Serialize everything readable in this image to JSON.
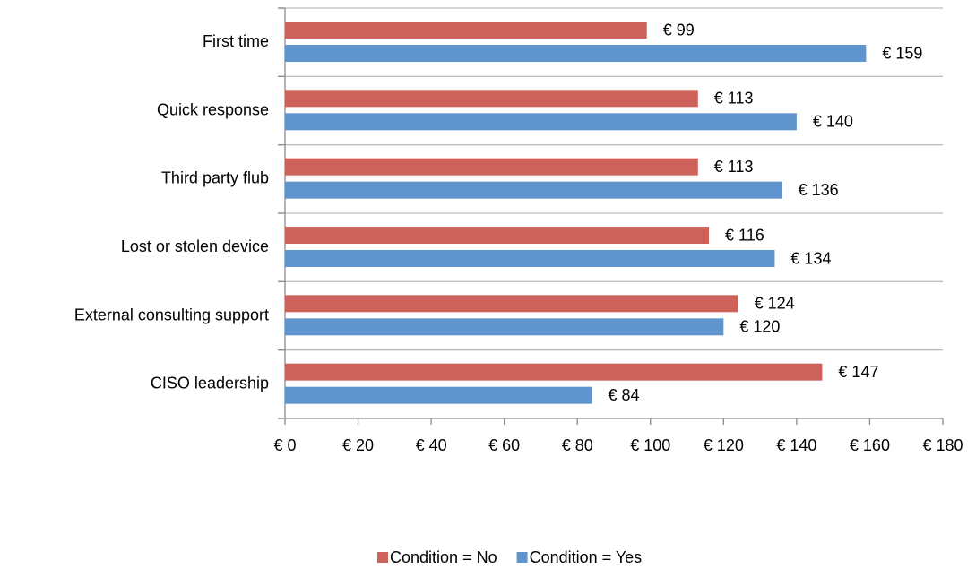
{
  "chart_data": {
    "type": "hbar",
    "categories": [
      "First time",
      "Quick response",
      "Third party flub",
      "Lost or stolen device",
      "External consulting support",
      "CISO leadership"
    ],
    "series": [
      {
        "name": "Condition = No",
        "color": "#cd625b",
        "values": [
          99,
          113,
          113,
          116,
          124,
          147
        ],
        "value_labels": [
          "€ 99",
          "€ 113",
          "€ 113",
          "€ 116",
          "€ 124",
          "€ 147"
        ]
      },
      {
        "name": "Condition = Yes",
        "color": "#5f94cc",
        "values": [
          159,
          140,
          136,
          134,
          120,
          84
        ],
        "value_labels": [
          "€ 159",
          "€ 140",
          "€ 136",
          "€ 134",
          "€ 120",
          "€ 84"
        ]
      }
    ],
    "xlim": [
      0,
      180
    ],
    "xticks": [
      {
        "value": 0,
        "label": "€ 0"
      },
      {
        "value": 20,
        "label": "€ 20"
      },
      {
        "value": 40,
        "label": "€ 40"
      },
      {
        "value": 60,
        "label": "€ 60"
      },
      {
        "value": 80,
        "label": "€ 80"
      },
      {
        "value": 100,
        "label": "€ 100"
      },
      {
        "value": 120,
        "label": "€ 120"
      },
      {
        "value": 140,
        "label": "€ 140"
      },
      {
        "value": 160,
        "label": "€ 160"
      },
      {
        "value": 180,
        "label": "€ 180"
      }
    ],
    "legend": "bottom"
  }
}
